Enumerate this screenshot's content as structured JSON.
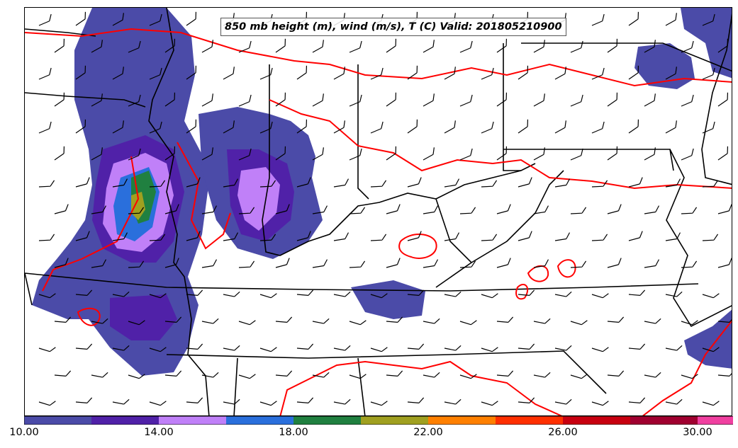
{
  "title": "850 mb height (m), wind (m/s), T (C) Valid: 201805210900",
  "colorbar": {
    "tick_labels": [
      "10.00",
      "14.00",
      "18.00",
      "22.00",
      "26.00",
      "30.00"
    ],
    "colors": [
      "#4b4ba8",
      "#5021a8",
      "#c080f8",
      "#2a6fdc",
      "#208040",
      "#a0a020",
      "#ff8000",
      "#ff3000",
      "#c80010",
      "#a00030",
      "#f040a0",
      "#ff88c8"
    ],
    "extend": "max"
  },
  "contour_color": "#ff0000",
  "boundary_color": "#000000"
}
